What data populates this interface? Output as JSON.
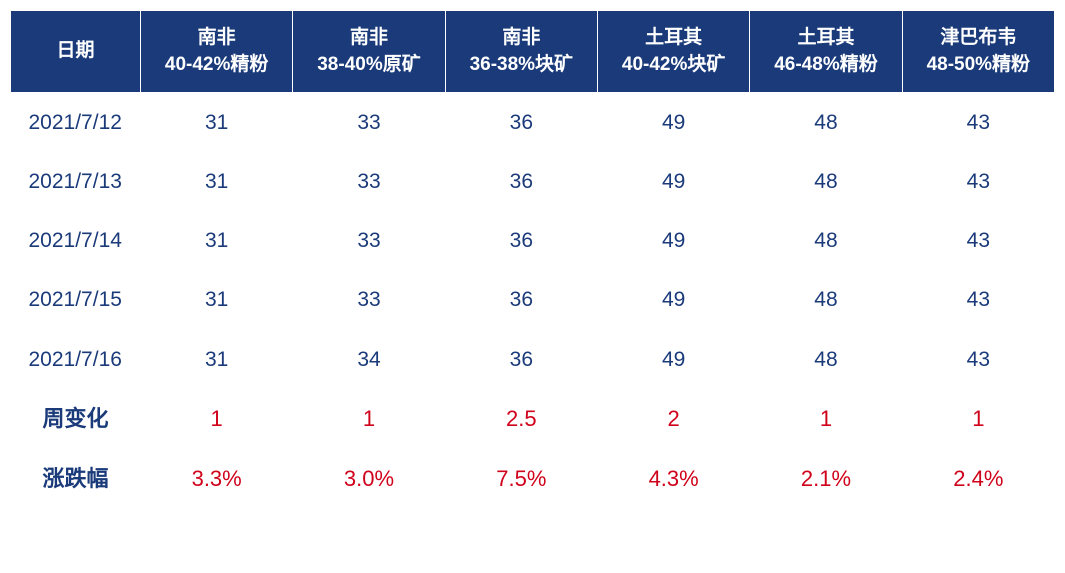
{
  "table": {
    "type": "table",
    "header_bg_color": "#1a3a7a",
    "header_text_color": "#ffffff",
    "body_text_color": "#1a3a7a",
    "highlight_color": "#d0021b",
    "background_color": "#ffffff",
    "header_fontsize": 19,
    "body_fontsize": 21,
    "columns": [
      {
        "line1": "日期",
        "line2": ""
      },
      {
        "line1": "南非",
        "line2": "40-42%精粉"
      },
      {
        "line1": "南非",
        "line2": "38-40%原矿"
      },
      {
        "line1": "南非",
        "line2": "36-38%块矿"
      },
      {
        "line1": "土耳其",
        "line2": "40-42%块矿"
      },
      {
        "line1": "土耳其",
        "line2": "46-48%精粉"
      },
      {
        "line1": "津巴布韦",
        "line2": "48-50%精粉"
      }
    ],
    "data_rows": [
      {
        "date": "2021/7/12",
        "values": [
          "31",
          "33",
          "36",
          "49",
          "48",
          "43"
        ]
      },
      {
        "date": "2021/7/13",
        "values": [
          "31",
          "33",
          "36",
          "49",
          "48",
          "43"
        ]
      },
      {
        "date": "2021/7/14",
        "values": [
          "31",
          "33",
          "36",
          "49",
          "48",
          "43"
        ]
      },
      {
        "date": "2021/7/15",
        "values": [
          "31",
          "33",
          "36",
          "49",
          "48",
          "43"
        ]
      },
      {
        "date": "2021/7/16",
        "values": [
          "31",
          "34",
          "36",
          "49",
          "48",
          "43"
        ]
      }
    ],
    "summary_rows": [
      {
        "label": "周变化",
        "values": [
          "1",
          "1",
          "2.5",
          "2",
          "1",
          "1"
        ]
      },
      {
        "label": "涨跌幅",
        "values": [
          "3.3%",
          "3.0%",
          "7.5%",
          "4.3%",
          "2.1%",
          "2.4%"
        ]
      }
    ]
  }
}
